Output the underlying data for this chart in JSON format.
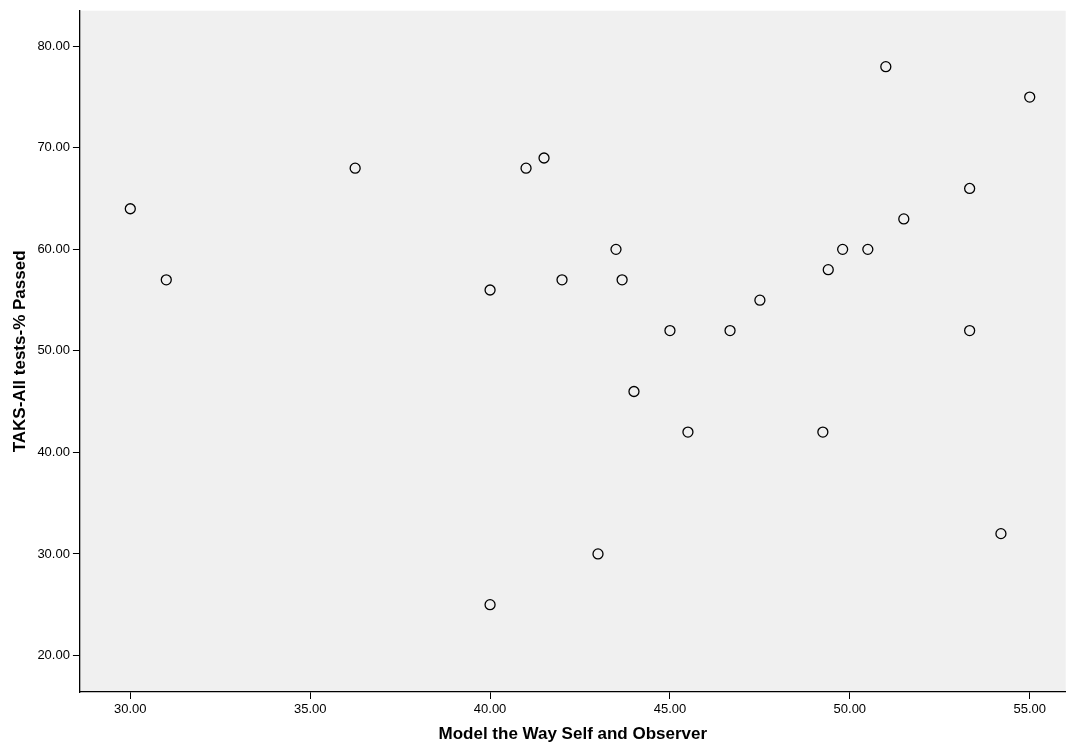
{
  "chart_data": {
    "type": "scatter",
    "xlabel": "Model the Way Self and Observer",
    "ylabel": "TAKS-All tests-% Passed",
    "x": [
      30,
      31,
      36.25,
      40,
      40,
      41,
      41.5,
      42,
      43,
      43.5,
      43.67,
      44,
      45,
      45.5,
      46.67,
      47.5,
      49.25,
      49.4,
      49.8,
      50.5,
      51,
      51.5,
      53.33,
      53.33,
      54.2,
      55
    ],
    "series": [
      {
        "color": "#000000",
        "values": [
          64,
          57,
          68,
          56,
          25,
          68,
          69,
          57,
          30,
          60,
          57,
          46,
          52,
          42,
          52,
          55,
          42,
          58,
          60,
          60,
          78,
          63,
          66,
          52,
          32,
          75
        ]
      }
    ],
    "xlim": [
      28.6,
      56
    ],
    "ylim": [
      16.4,
      83.5
    ],
    "xticks": [
      {
        "value": 30,
        "label": "30.00"
      },
      {
        "value": 35,
        "label": "35.00"
      },
      {
        "value": 40,
        "label": "40.00"
      },
      {
        "value": 45,
        "label": "45.00"
      },
      {
        "value": 50,
        "label": "50.00"
      },
      {
        "value": 55,
        "label": "55.00"
      }
    ],
    "yticks": [
      {
        "value": 20,
        "label": "20.00"
      },
      {
        "value": 30,
        "label": "30.00"
      },
      {
        "value": 40,
        "label": "40.00"
      },
      {
        "value": 50,
        "label": "50.00"
      },
      {
        "value": 60,
        "label": "60.00"
      },
      {
        "value": 70,
        "label": "70.00"
      },
      {
        "value": 80,
        "label": "80.00"
      }
    ],
    "grid": false,
    "legend": false,
    "marker": "circle"
  }
}
